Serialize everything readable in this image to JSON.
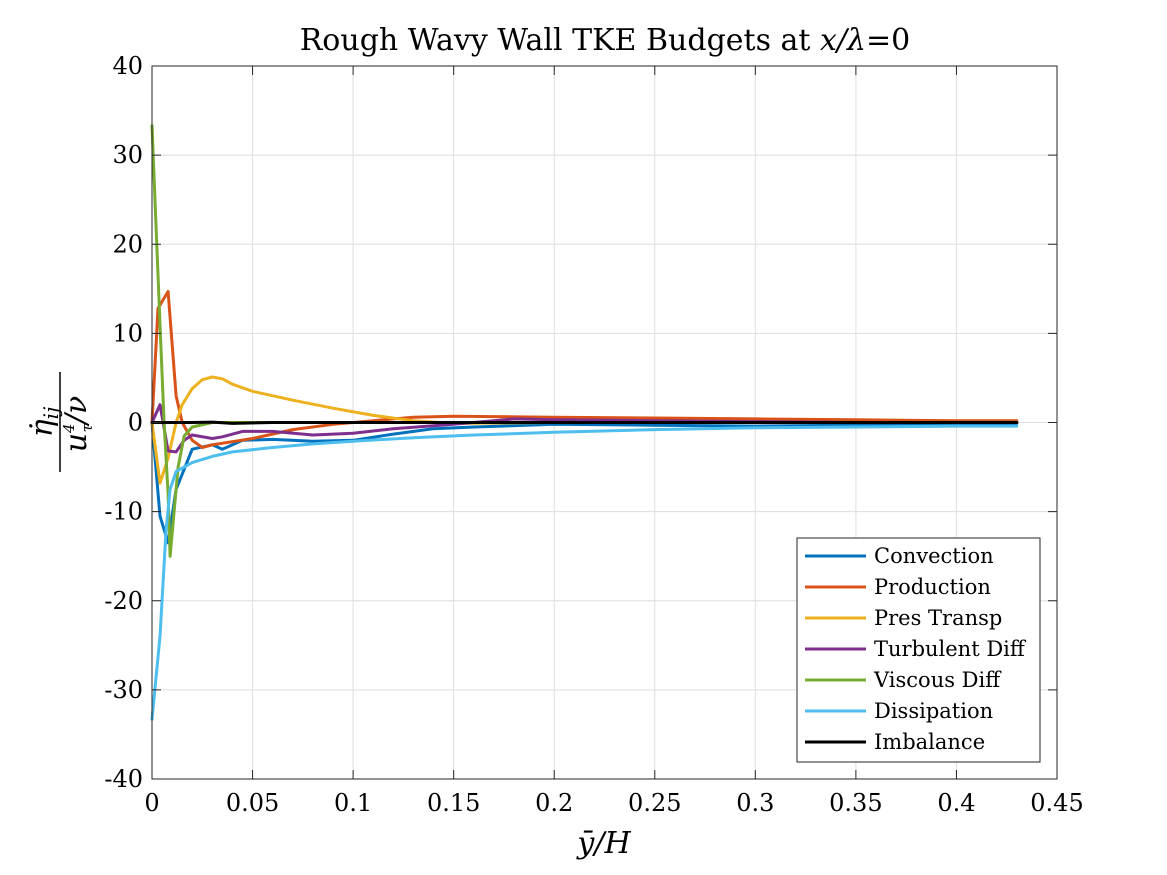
{
  "chart_data": {
    "type": "line",
    "title": "Rough Wavy Wall TKE Budgets at x/λ=0",
    "title_parts": {
      "prefix": "Rough Wavy Wall TKE Budgets at ",
      "var": "x/λ",
      "suffix": "=0"
    },
    "xlabel": "ȳ/H",
    "ylabel": "η̇ij / (u_τ⁴/ν)",
    "ylabel_parts": {
      "numerator": "η̇",
      "numerator_sub": "ij",
      "denominator": "u",
      "denominator_sub": "τ",
      "denominator_sup": "4",
      "denominator_rest": "/ν"
    },
    "xlim": [
      0,
      0.45
    ],
    "ylim": [
      -40,
      40
    ],
    "xticks": [
      0,
      0.05,
      0.1,
      0.15,
      0.2,
      0.25,
      0.3,
      0.35,
      0.4,
      0.45
    ],
    "xtick_labels": [
      "0",
      "0.05",
      "0.1",
      "0.15",
      "0.2",
      "0.25",
      "0.3",
      "0.35",
      "0.4",
      "0.45"
    ],
    "yticks": [
      -40,
      -30,
      -20,
      -10,
      0,
      10,
      20,
      30,
      40
    ],
    "ytick_labels": [
      "-40",
      "-30",
      "-20",
      "-10",
      "0",
      "10",
      "20",
      "30",
      "40"
    ],
    "grid": true,
    "legend_position": "bottom-right",
    "series": [
      {
        "name": "Convection",
        "color": "#0072BD",
        "points": [
          [
            0,
            0
          ],
          [
            0.004,
            -10.5
          ],
          [
            0.008,
            -13.5
          ],
          [
            0.012,
            -7.5
          ],
          [
            0.02,
            -3
          ],
          [
            0.03,
            -2.5
          ],
          [
            0.035,
            -3
          ],
          [
            0.045,
            -2
          ],
          [
            0.06,
            -1.9
          ],
          [
            0.08,
            -2.1
          ],
          [
            0.1,
            -2
          ],
          [
            0.12,
            -1.3
          ],
          [
            0.14,
            -0.7
          ],
          [
            0.16,
            -0.5
          ],
          [
            0.2,
            -0.2
          ],
          [
            0.25,
            -0.3
          ],
          [
            0.3,
            -0.4
          ],
          [
            0.35,
            -0.3
          ],
          [
            0.4,
            -0.2
          ],
          [
            0.43,
            -0.1
          ]
        ]
      },
      {
        "name": "Production",
        "color": "#D95319",
        "points": [
          [
            0,
            0
          ],
          [
            0.003,
            12.8
          ],
          [
            0.008,
            14.7
          ],
          [
            0.012,
            3
          ],
          [
            0.015,
            0
          ],
          [
            0.02,
            -2
          ],
          [
            0.025,
            -2.8
          ],
          [
            0.03,
            -2.5
          ],
          [
            0.05,
            -1.8
          ],
          [
            0.07,
            -0.8
          ],
          [
            0.09,
            -0.2
          ],
          [
            0.11,
            0.2
          ],
          [
            0.13,
            0.6
          ],
          [
            0.15,
            0.7
          ],
          [
            0.2,
            0.6
          ],
          [
            0.25,
            0.5
          ],
          [
            0.3,
            0.4
          ],
          [
            0.35,
            0.3
          ],
          [
            0.4,
            0.2
          ],
          [
            0.43,
            0.2
          ]
        ]
      },
      {
        "name": "Pres Transp",
        "color": "#EDB120",
        "points": [
          [
            0,
            0
          ],
          [
            0.004,
            -6.8
          ],
          [
            0.008,
            -4
          ],
          [
            0.012,
            0
          ],
          [
            0.015,
            2
          ],
          [
            0.02,
            3.8
          ],
          [
            0.025,
            4.8
          ],
          [
            0.03,
            5.1
          ],
          [
            0.035,
            4.9
          ],
          [
            0.04,
            4.3
          ],
          [
            0.05,
            3.5
          ],
          [
            0.07,
            2.5
          ],
          [
            0.09,
            1.6
          ],
          [
            0.11,
            0.8
          ],
          [
            0.13,
            0.2
          ],
          [
            0.15,
            -0.1
          ],
          [
            0.2,
            0
          ],
          [
            0.3,
            0
          ],
          [
            0.43,
            0
          ]
        ]
      },
      {
        "name": "Turbulent Diff",
        "color": "#7E2F8E",
        "points": [
          [
            0,
            0
          ],
          [
            0.004,
            2
          ],
          [
            0.008,
            -3.2
          ],
          [
            0.012,
            -3.3
          ],
          [
            0.016,
            -2
          ],
          [
            0.02,
            -1.4
          ],
          [
            0.03,
            -1.8
          ],
          [
            0.035,
            -1.6
          ],
          [
            0.045,
            -1
          ],
          [
            0.06,
            -1
          ],
          [
            0.08,
            -1.4
          ],
          [
            0.1,
            -1.2
          ],
          [
            0.12,
            -0.7
          ],
          [
            0.15,
            -0.2
          ],
          [
            0.18,
            0.4
          ],
          [
            0.2,
            0.3
          ],
          [
            0.25,
            0.2
          ],
          [
            0.3,
            0.1
          ],
          [
            0.35,
            0
          ],
          [
            0.43,
            0
          ]
        ]
      },
      {
        "name": "Viscous Diff",
        "color": "#77AC30",
        "points": [
          [
            0,
            33.3
          ],
          [
            0.004,
            11
          ],
          [
            0.006,
            0
          ],
          [
            0.008,
            -8
          ],
          [
            0.009,
            -15
          ],
          [
            0.011,
            -10
          ],
          [
            0.013,
            -5
          ],
          [
            0.016,
            -1.5
          ],
          [
            0.02,
            -0.5
          ],
          [
            0.03,
            0
          ],
          [
            0.43,
            0
          ]
        ]
      },
      {
        "name": "Dissipation",
        "color": "#4DBEEE",
        "points": [
          [
            0,
            -33.3
          ],
          [
            0.004,
            -24
          ],
          [
            0.007,
            -12
          ],
          [
            0.009,
            -7.5
          ],
          [
            0.012,
            -5.5
          ],
          [
            0.02,
            -4.5
          ],
          [
            0.03,
            -3.8
          ],
          [
            0.04,
            -3.3
          ],
          [
            0.06,
            -2.8
          ],
          [
            0.08,
            -2.4
          ],
          [
            0.1,
            -2.1
          ],
          [
            0.13,
            -1.7
          ],
          [
            0.16,
            -1.4
          ],
          [
            0.2,
            -1.1
          ],
          [
            0.25,
            -0.8
          ],
          [
            0.3,
            -0.6
          ],
          [
            0.35,
            -0.5
          ],
          [
            0.4,
            -0.4
          ],
          [
            0.43,
            -0.4
          ]
        ]
      },
      {
        "name": "Imbalance",
        "color": "#000000",
        "points": [
          [
            0,
            0
          ],
          [
            0.02,
            0
          ],
          [
            0.03,
            0.05
          ],
          [
            0.04,
            -0.1
          ],
          [
            0.06,
            0
          ],
          [
            0.1,
            0
          ],
          [
            0.2,
            0
          ],
          [
            0.3,
            0
          ],
          [
            0.43,
            0
          ]
        ]
      }
    ]
  }
}
